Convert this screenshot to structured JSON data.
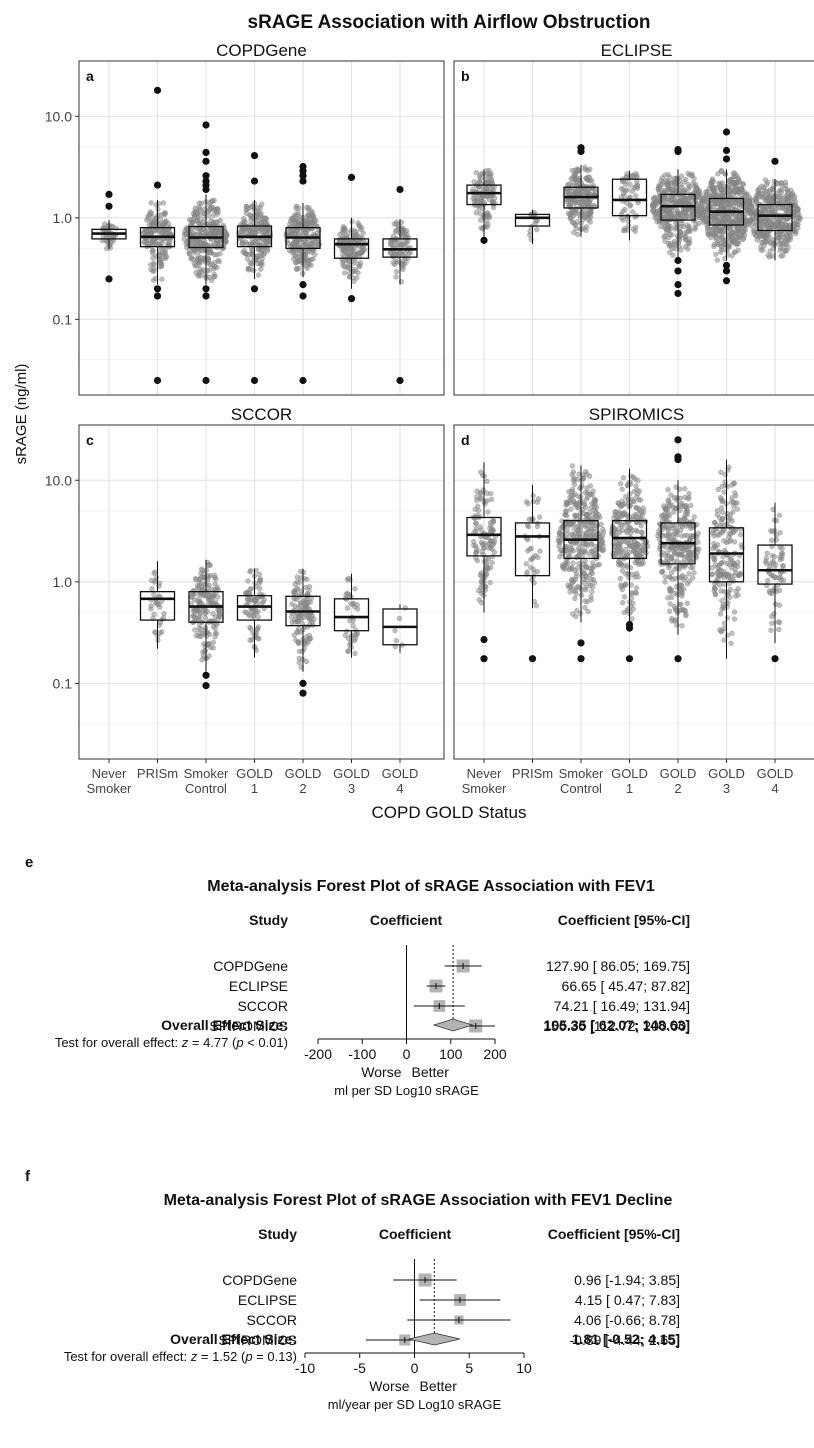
{
  "figure_title": "sRAGE Association with Airflow Obstruction",
  "chart_data": [
    {
      "type": "box",
      "ylabel": "sRAGE (ng/ml)",
      "xlabel": "COPD GOLD Status",
      "y_scale": "log10",
      "ylim": [
        0.018,
        35
      ],
      "y_ticks": [
        "0.1",
        "1.0",
        "10.0"
      ],
      "categories": [
        {
          "line1": "Never",
          "line2": "Smoker"
        },
        {
          "line1": "PRISm",
          "line2": ""
        },
        {
          "line1": "Smoker",
          "line2": "Control"
        },
        {
          "line1": "GOLD",
          "line2": "1"
        },
        {
          "line1": "GOLD",
          "line2": "2"
        },
        {
          "line1": "GOLD",
          "line2": "3"
        },
        {
          "line1": "GOLD",
          "line2": "4"
        }
      ],
      "panels": [
        {
          "letter": "a",
          "title": "COPDGene",
          "boxes": [
            {
              "q1": 0.62,
              "median": 0.7,
              "q3": 0.77,
              "lo": 0.49,
              "hi": 0.95,
              "n": 40,
              "outliers": [
                1.7,
                1.3,
                0.25
              ]
            },
            {
              "q1": 0.52,
              "median": 0.65,
              "q3": 0.8,
              "lo": 0.22,
              "hi": 1.5,
              "n": 170,
              "outliers": [
                18.0,
                2.1,
                0.2,
                0.17,
                0.025
              ]
            },
            {
              "q1": 0.51,
              "median": 0.64,
              "q3": 0.82,
              "lo": 0.22,
              "hi": 1.7,
              "n": 320,
              "outliers": [
                8.2,
                4.4,
                3.6,
                2.6,
                2.3,
                2.1,
                1.9,
                0.2,
                0.17,
                0.025
              ]
            },
            {
              "q1": 0.52,
              "median": 0.65,
              "q3": 0.83,
              "lo": 0.25,
              "hi": 1.5,
              "n": 200,
              "outliers": [
                4.1,
                2.3,
                0.2,
                0.025
              ]
            },
            {
              "q1": 0.5,
              "median": 0.64,
              "q3": 0.8,
              "lo": 0.26,
              "hi": 1.4,
              "n": 220,
              "outliers": [
                3.2,
                2.9,
                2.6,
                2.3,
                0.22,
                0.17,
                0.025
              ]
            },
            {
              "q1": 0.4,
              "median": 0.55,
              "q3": 0.62,
              "lo": 0.2,
              "hi": 1.0,
              "n": 150,
              "outliers": [
                2.5,
                0.16
              ]
            },
            {
              "q1": 0.41,
              "median": 0.49,
              "q3": 0.62,
              "lo": 0.22,
              "hi": 0.97,
              "n": 90,
              "outliers": [
                1.9,
                0.025
              ]
            }
          ]
        },
        {
          "letter": "b",
          "title": "ECLIPSE",
          "boxes": [
            {
              "q1": 1.35,
              "median": 1.75,
              "q3": 2.1,
              "lo": 0.65,
              "hi": 3.0,
              "n": 120,
              "outliers": [
                0.6
              ]
            },
            {
              "q1": 0.83,
              "median": 1.0,
              "q3": 1.08,
              "lo": 0.55,
              "hi": 1.2,
              "n": 14,
              "outliers": []
            },
            {
              "q1": 1.25,
              "median": 1.6,
              "q3": 2.0,
              "lo": 0.65,
              "hi": 3.3,
              "n": 200,
              "outliers": [
                4.9,
                4.5
              ]
            },
            {
              "q1": 1.05,
              "median": 1.5,
              "q3": 2.4,
              "lo": 0.6,
              "hi": 2.9,
              "n": 60,
              "outliers": []
            },
            {
              "q1": 0.95,
              "median": 1.3,
              "q3": 1.7,
              "lo": 0.4,
              "hi": 3.0,
              "n": 400,
              "outliers": [
                4.7,
                4.5,
                0.38,
                0.3,
                0.22,
                0.18
              ]
            },
            {
              "q1": 0.85,
              "median": 1.15,
              "q3": 1.55,
              "lo": 0.38,
              "hi": 3.0,
              "n": 500,
              "outliers": [
                7.0,
                4.6,
                3.8,
                0.34,
                0.3,
                0.24
              ]
            },
            {
              "q1": 0.75,
              "median": 1.05,
              "q3": 1.35,
              "lo": 0.38,
              "hi": 2.4,
              "n": 400,
              "outliers": [
                3.6
              ]
            }
          ]
        },
        {
          "letter": "c",
          "title": "SCCOR",
          "boxes": [
            {
              "q1": 1,
              "median": 1,
              "q3": 1,
              "lo": 1,
              "hi": 1,
              "n": 0,
              "outliers": [],
              "empty": true
            },
            {
              "q1": 0.42,
              "median": 0.68,
              "q3": 0.8,
              "lo": 0.22,
              "hi": 1.6,
              "n": 35,
              "outliers": []
            },
            {
              "q1": 0.4,
              "median": 0.57,
              "q3": 0.8,
              "lo": 0.13,
              "hi": 1.65,
              "n": 180,
              "outliers": [
                0.12,
                0.095
              ]
            },
            {
              "q1": 0.42,
              "median": 0.57,
              "q3": 0.73,
              "lo": 0.18,
              "hi": 1.35,
              "n": 80,
              "outliers": []
            },
            {
              "q1": 0.37,
              "median": 0.51,
              "q3": 0.72,
              "lo": 0.13,
              "hi": 1.35,
              "n": 120,
              "outliers": [
                0.1,
                0.08
              ]
            },
            {
              "q1": 0.33,
              "median": 0.45,
              "q3": 0.68,
              "lo": 0.18,
              "hi": 1.2,
              "n": 40,
              "outliers": []
            },
            {
              "q1": 0.24,
              "median": 0.36,
              "q3": 0.54,
              "lo": 0.2,
              "hi": 0.6,
              "n": 6,
              "outliers": []
            }
          ]
        },
        {
          "letter": "d",
          "title": "SPIROMICS",
          "boxes": [
            {
              "q1": 1.8,
              "median": 2.9,
              "q3": 4.3,
              "lo": 0.5,
              "hi": 15.0,
              "n": 120,
              "outliers": [
                0.27,
                0.175
              ]
            },
            {
              "q1": 1.15,
              "median": 2.8,
              "q3": 3.8,
              "lo": 0.55,
              "hi": 9.0,
              "n": 40,
              "outliers": [
                0.175
              ]
            },
            {
              "q1": 1.7,
              "median": 2.6,
              "q3": 4.0,
              "lo": 0.4,
              "hi": 14.0,
              "n": 350,
              "outliers": [
                0.25,
                0.175
              ]
            },
            {
              "q1": 1.7,
              "median": 2.7,
              "q3": 4.0,
              "lo": 0.4,
              "hi": 13.0,
              "n": 250,
              "outliers": [
                0.38,
                0.35,
                0.175
              ]
            },
            {
              "q1": 1.5,
              "median": 2.4,
              "q3": 3.8,
              "lo": 0.3,
              "hi": 10.0,
              "n": 300,
              "outliers": [
                25.0,
                17.0,
                16.0,
                0.175
              ]
            },
            {
              "q1": 1.0,
              "median": 1.9,
              "q3": 3.4,
              "lo": 0.175,
              "hi": 16.0,
              "n": 200,
              "outliers": []
            },
            {
              "q1": 0.95,
              "median": 1.3,
              "q3": 2.3,
              "lo": 0.25,
              "hi": 6.0,
              "n": 70,
              "outliers": [
                0.175
              ]
            }
          ]
        }
      ]
    },
    {
      "type": "forest",
      "panel_letter": "e",
      "title": "Meta-analysis Forest Plot of sRAGE Association with FEV1",
      "col_study": "Study",
      "col_coefficient": "Coefficient",
      "col_ci": "Coefficient [95%-CI]",
      "studies": [
        {
          "name": "COPDGene",
          "est": 127.9,
          "lo": 86.05,
          "hi": 169.75,
          "label": "127.90 [ 86.05; 169.75]",
          "weight": 1.0
        },
        {
          "name": "ECLIPSE",
          "est": 66.65,
          "lo": 45.47,
          "hi": 87.82,
          "label": "66.65 [ 45.47;  87.82]",
          "weight": 1.0
        },
        {
          "name": "SCCOR",
          "est": 74.21,
          "lo": 16.49,
          "hi": 131.94,
          "label": "74.21 [ 16.49; 131.94]",
          "weight": 0.9
        },
        {
          "name": "SPIROMICS",
          "est": 156.36,
          "lo": 112.72,
          "hi": 200.0,
          "label": "156.36 [112.72; 200.00]",
          "weight": 1.0
        }
      ],
      "overall": {
        "name": "Overall Effect Size:",
        "est": 105.35,
        "lo": 62.07,
        "hi": 148.63,
        "label": "105.35 [ 62.07; 148.63]"
      },
      "test_prefix": "Test for overall effect: ",
      "test_z_symbol": "z",
      "test_z_value": " = 4.77 (",
      "test_p_symbol": "p",
      "test_p_value": " < 0.01)",
      "xlim": [
        -200,
        200
      ],
      "x_ticks": [
        -200,
        -100,
        0,
        100,
        200
      ],
      "worse": "Worse",
      "better": "Better",
      "xlabel": "ml per SD Log10 sRAGE"
    },
    {
      "type": "forest",
      "panel_letter": "f",
      "title": "Meta-analysis Forest Plot of sRAGE Association with FEV1 Decline",
      "col_study": "Study",
      "col_coefficient": "Coefficient",
      "col_ci": "Coefficient [95%-CI]",
      "studies": [
        {
          "name": "COPDGene",
          "est": 0.96,
          "lo": -1.94,
          "hi": 3.85,
          "label": "0.96 [-1.94; 3.85]",
          "weight": 1.0
        },
        {
          "name": "ECLIPSE",
          "est": 4.15,
          "lo": 0.47,
          "hi": 7.83,
          "label": "4.15 [ 0.47; 7.83]",
          "weight": 0.9
        },
        {
          "name": "SCCOR",
          "est": 4.06,
          "lo": -0.66,
          "hi": 8.78,
          "label": "4.06 [-0.66; 8.78]",
          "weight": 0.7
        },
        {
          "name": "SPIROMICS",
          "est": -0.89,
          "lo": -4.44,
          "hi": 2.65,
          "label": "-0.89 [-4.44; 2.65]",
          "weight": 0.85
        }
      ],
      "overall": {
        "name": "Overall Effect Size:",
        "est": 1.81,
        "lo": -0.52,
        "hi": 4.15,
        "label": "1.81 [-0.52; 4.15]"
      },
      "test_prefix": "Test for overall effect: ",
      "test_z_symbol": "z",
      "test_z_value": " = 1.52 (",
      "test_p_symbol": "p",
      "test_p_value": " = 0.13)",
      "xlim": [
        -10,
        10
      ],
      "x_ticks": [
        -10,
        -5,
        0,
        5,
        10
      ],
      "worse": "Worse",
      "better": "Better",
      "xlabel": "ml/year per SD Log10 sRAGE"
    }
  ]
}
